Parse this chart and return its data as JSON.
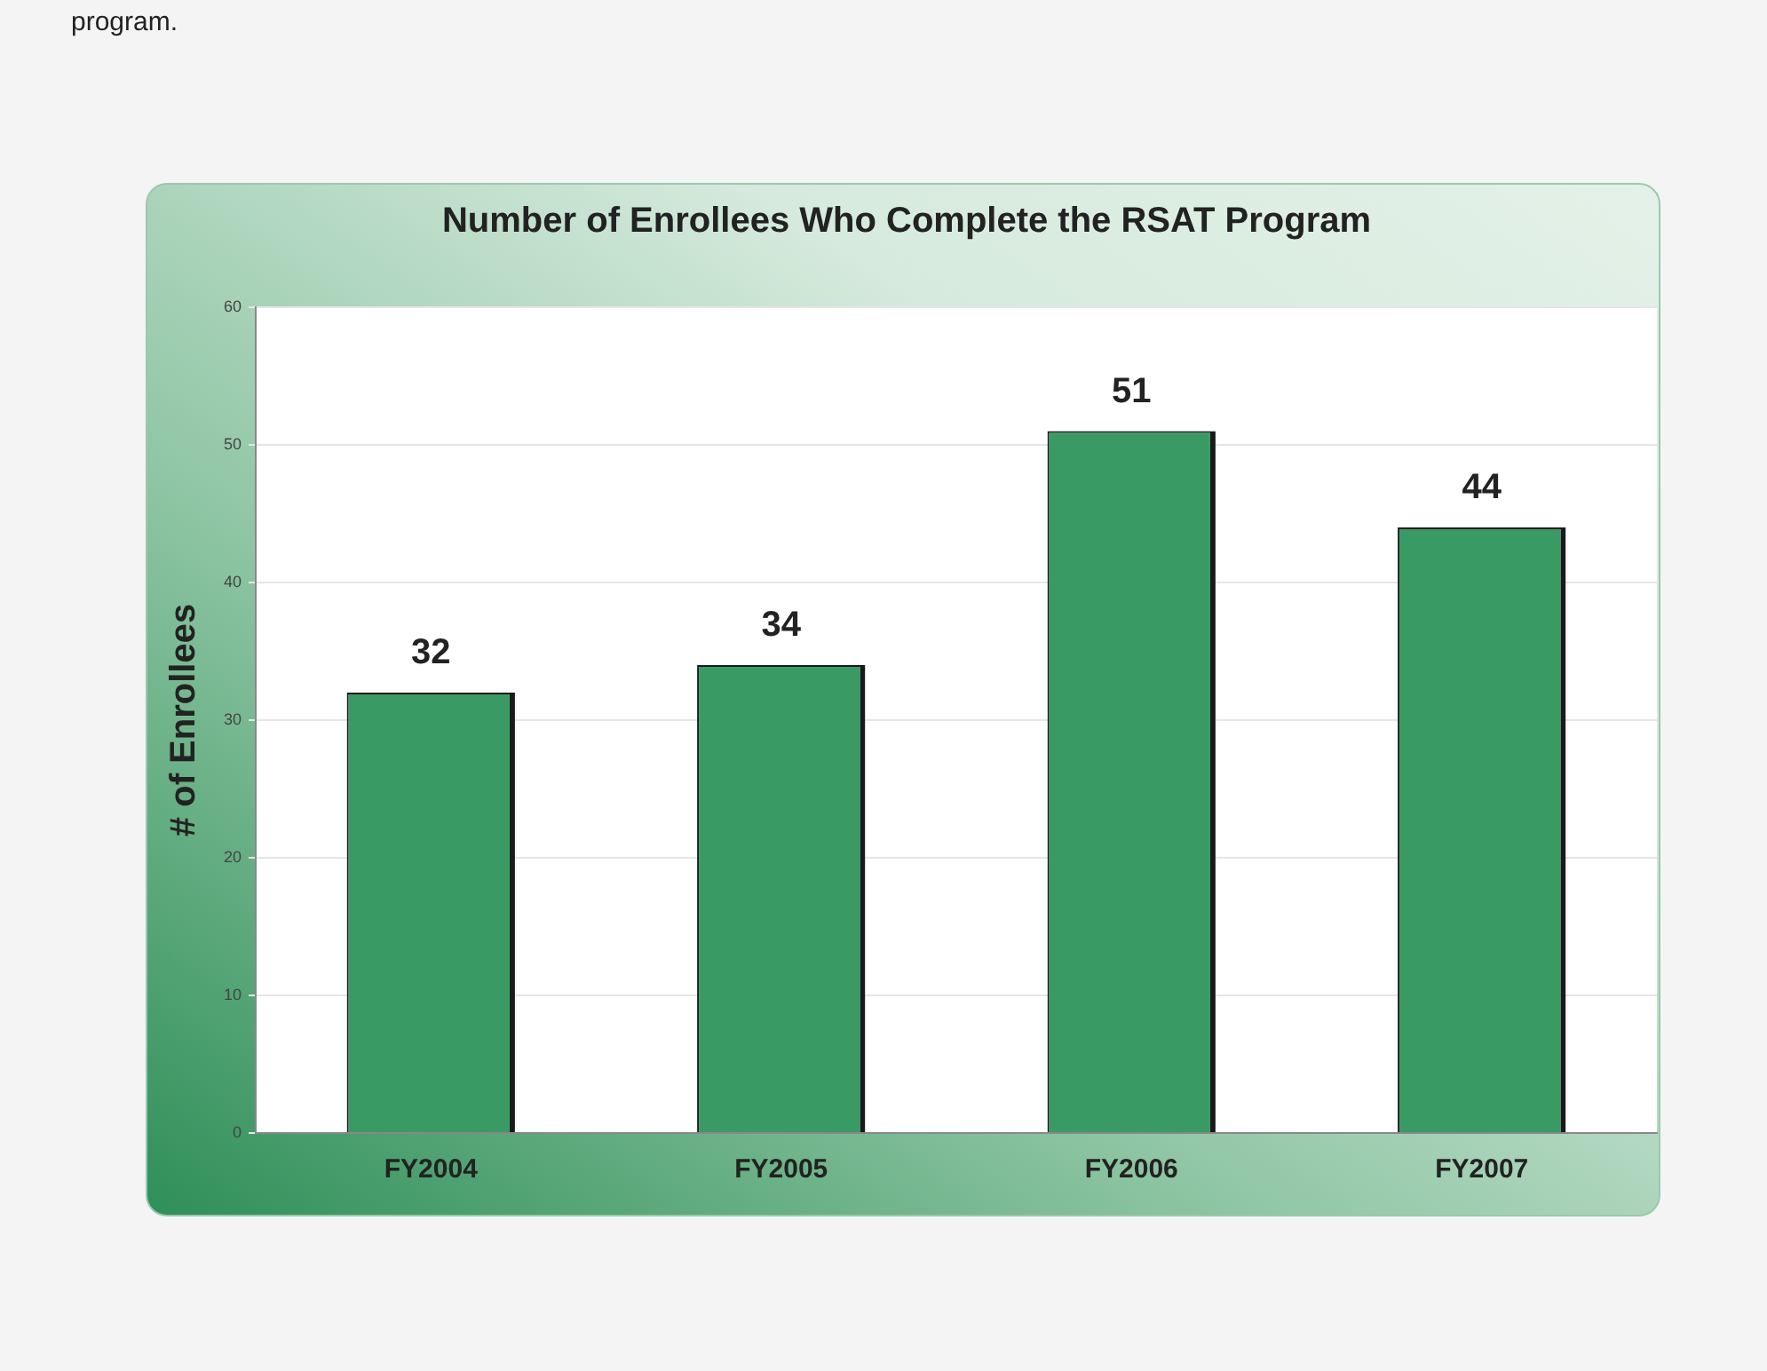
{
  "chart_data": {
    "type": "bar",
    "title": "Number of Enrollees Who Complete the RSAT Program",
    "ylabel": "# of Enrollees",
    "categories": [
      "FY2004",
      "FY2005",
      "FY2006",
      "FY2007"
    ],
    "values": [
      32,
      34,
      51,
      44
    ],
    "color": "#3a9a64",
    "ylim": [
      0,
      60
    ],
    "yticks": [
      0,
      10,
      20,
      30,
      40,
      50,
      60
    ],
    "grid": "y",
    "data_labels": true,
    "annotations": [
      "program."
    ]
  }
}
